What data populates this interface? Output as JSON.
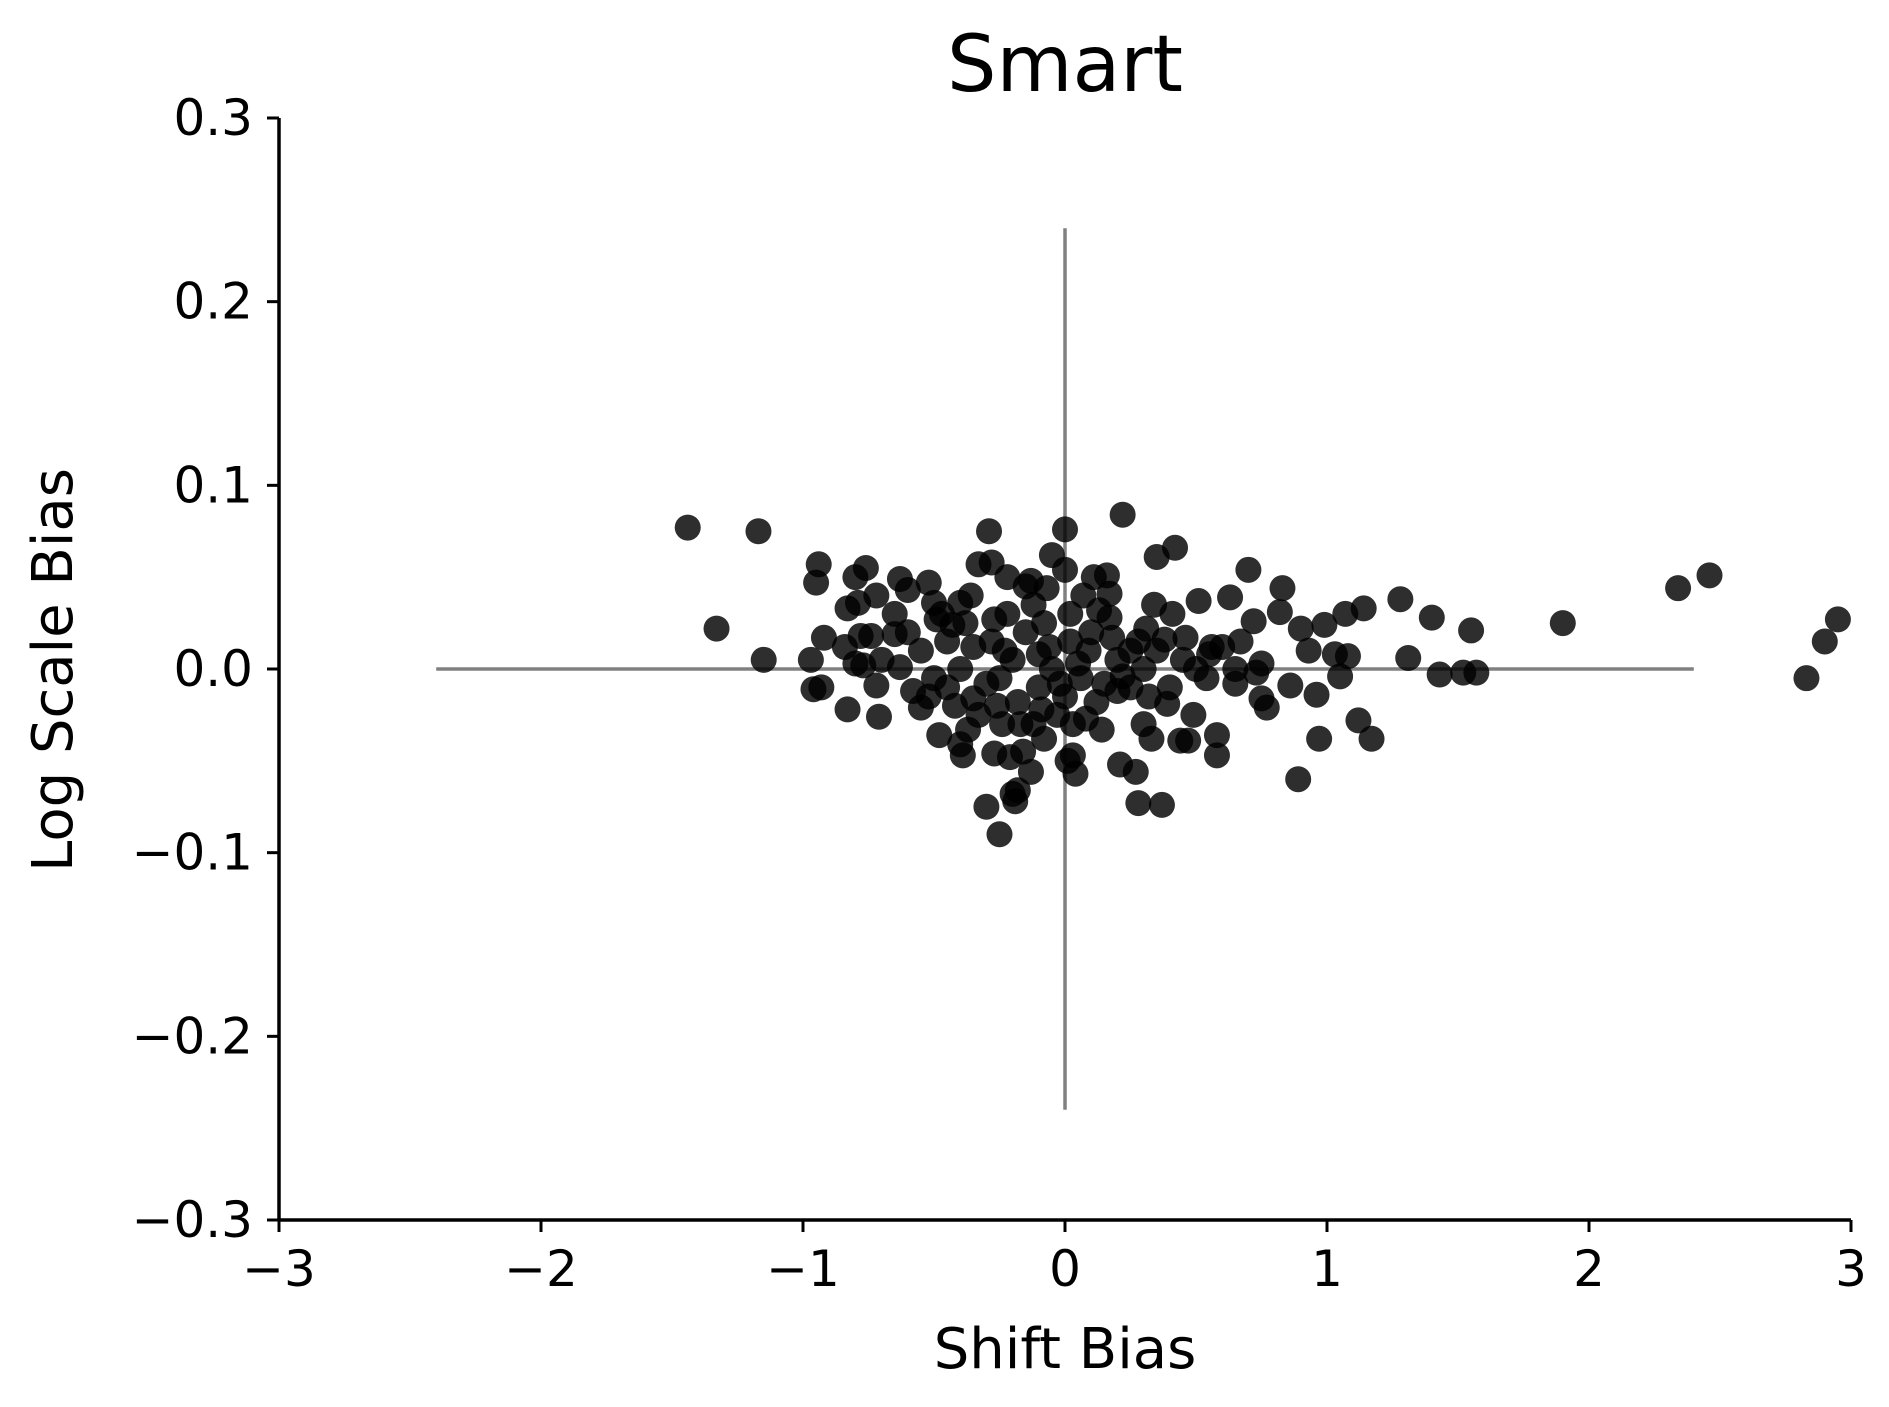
{
  "chart_data": {
    "type": "scatter",
    "title": "Smart",
    "xlabel": "Shift Bias",
    "ylabel": "Log Scale Bias",
    "xlim": [
      -3,
      3
    ],
    "ylim": [
      -0.3,
      0.3
    ],
    "xticks": [
      -3,
      -2,
      -1,
      0,
      1,
      2,
      3
    ],
    "xtick_labels": [
      "−3",
      "−2",
      "−1",
      "0",
      "1",
      "2",
      "3"
    ],
    "yticks": [
      0.3,
      0.2,
      0.1,
      0.0,
      -0.1,
      -0.2,
      -0.3
    ],
    "ytick_labels": [
      "0.3",
      "0.2",
      "0.1",
      "0.0",
      "−0.1",
      "−0.2",
      "−0.3"
    ],
    "grid": false,
    "legend": "none",
    "reference_lines": {
      "horizontal": {
        "y": 0,
        "x_from": -2.4,
        "x_to": 2.4,
        "color": "#808080"
      },
      "vertical": {
        "x": 0,
        "y_from": -0.24,
        "y_to": 0.24,
        "color": "#808080"
      }
    },
    "point_color": "#000000",
    "points": [
      [
        -1.44,
        0.077
      ],
      [
        -1.17,
        0.075
      ],
      [
        -1.33,
        0.022
      ],
      [
        -1.15,
        0.005
      ],
      [
        -0.94,
        0.057
      ],
      [
        -0.95,
        0.047
      ],
      [
        -0.97,
        0.005
      ],
      [
        -0.96,
        -0.011
      ],
      [
        -0.93,
        -0.01
      ],
      [
        -0.92,
        0.017
      ],
      [
        -0.83,
        -0.022
      ],
      [
        -0.84,
        0.012
      ],
      [
        -0.83,
        0.033
      ],
      [
        -0.8,
        0.05
      ],
      [
        -0.79,
        0.036
      ],
      [
        -0.76,
        0.055
      ],
      [
        -0.78,
        0.018
      ],
      [
        -0.8,
        0.003
      ],
      [
        -0.77,
        0.002
      ],
      [
        -0.74,
        0.018
      ],
      [
        -0.72,
        -0.009
      ],
      [
        -0.71,
        -0.026
      ],
      [
        -0.72,
        0.04
      ],
      [
        -0.63,
        0.049
      ],
      [
        -0.6,
        0.043
      ],
      [
        -0.65,
        0.019
      ],
      [
        -0.63,
        0.001
      ],
      [
        -0.55,
        -0.021
      ],
      [
        -0.52,
        0.047
      ],
      [
        -0.5,
        0.036
      ],
      [
        -0.49,
        0.027
      ],
      [
        -0.48,
        -0.036
      ],
      [
        -0.45,
        -0.01
      ],
      [
        -0.43,
        0.024
      ],
      [
        -0.4,
        0.036
      ],
      [
        -0.4,
        -0.041
      ],
      [
        -0.39,
        -0.047
      ],
      [
        -0.37,
        -0.033
      ],
      [
        -0.35,
        -0.016
      ],
      [
        -0.33,
        0.057
      ],
      [
        -0.3,
        -0.075
      ],
      [
        -0.29,
        0.075
      ],
      [
        -0.28,
        0.058
      ],
      [
        -0.27,
        -0.046
      ],
      [
        -0.25,
        -0.09
      ],
      [
        -0.24,
        -0.03
      ],
      [
        -0.22,
        0.05
      ],
      [
        -0.21,
        -0.048
      ],
      [
        -0.2,
        -0.068
      ],
      [
        -0.19,
        -0.072
      ],
      [
        -0.18,
        -0.066
      ],
      [
        -0.16,
        -0.045
      ],
      [
        -0.15,
        0.045
      ],
      [
        -0.13,
        -0.056
      ],
      [
        -0.12,
        -0.03
      ],
      [
        -0.1,
        0.008
      ],
      [
        -0.08,
        -0.038
      ],
      [
        -0.06,
        0.012
      ],
      [
        -0.05,
        0.062
      ],
      [
        -0.03,
        -0.025
      ],
      [
        0.0,
        0.076
      ],
      [
        0.0,
        0.054
      ],
      [
        0.01,
        -0.05
      ],
      [
        0.02,
        0.03
      ],
      [
        0.03,
        -0.047
      ],
      [
        0.04,
        -0.057
      ],
      [
        0.06,
        -0.005
      ],
      [
        0.08,
        -0.027
      ],
      [
        0.09,
        0.01
      ],
      [
        0.11,
        0.05
      ],
      [
        0.13,
        0.032
      ],
      [
        0.14,
        -0.033
      ],
      [
        0.16,
        0.051
      ],
      [
        0.17,
        0.041
      ],
      [
        0.18,
        0.017
      ],
      [
        0.2,
        -0.012
      ],
      [
        0.21,
        -0.052
      ],
      [
        0.22,
        0.084
      ],
      [
        0.25,
        0.01
      ],
      [
        0.27,
        -0.056
      ],
      [
        0.28,
        -0.073
      ],
      [
        0.3,
        -0.03
      ],
      [
        0.31,
        0.022
      ],
      [
        0.33,
        -0.038
      ],
      [
        0.34,
        0.035
      ],
      [
        0.35,
        0.061
      ],
      [
        0.37,
        -0.074
      ],
      [
        0.38,
        0.016
      ],
      [
        0.39,
        -0.019
      ],
      [
        0.41,
        0.03
      ],
      [
        0.42,
        0.066
      ],
      [
        0.44,
        -0.039
      ],
      [
        0.46,
        0.017
      ],
      [
        0.47,
        -0.039
      ],
      [
        0.49,
        -0.025
      ],
      [
        0.51,
        0.037
      ],
      [
        0.54,
        -0.005
      ],
      [
        0.56,
        0.012
      ],
      [
        0.58,
        -0.036
      ],
      [
        0.58,
        -0.047
      ],
      [
        0.6,
        0.012
      ],
      [
        0.63,
        0.039
      ],
      [
        0.65,
        -0.008
      ],
      [
        0.67,
        0.015
      ],
      [
        0.7,
        0.054
      ],
      [
        0.72,
        0.026
      ],
      [
        0.73,
        -0.002
      ],
      [
        0.75,
        -0.016
      ],
      [
        0.77,
        -0.021
      ],
      [
        0.82,
        0.031
      ],
      [
        0.83,
        0.044
      ],
      [
        0.86,
        -0.009
      ],
      [
        0.89,
        -0.06
      ],
      [
        0.9,
        0.022
      ],
      [
        0.93,
        0.01
      ],
      [
        0.96,
        -0.014
      ],
      [
        0.97,
        -0.038
      ],
      [
        0.99,
        0.024
      ],
      [
        1.03,
        0.008
      ],
      [
        1.05,
        -0.004
      ],
      [
        1.07,
        0.03
      ],
      [
        1.08,
        0.007
      ],
      [
        1.12,
        -0.028
      ],
      [
        1.14,
        0.033
      ],
      [
        1.17,
        -0.038
      ],
      [
        1.28,
        0.038
      ],
      [
        1.31,
        0.006
      ],
      [
        1.4,
        0.028
      ],
      [
        1.43,
        -0.003
      ],
      [
        1.52,
        -0.002
      ],
      [
        1.55,
        0.021
      ],
      [
        1.57,
        -0.002
      ],
      [
        1.9,
        0.025
      ],
      [
        2.34,
        0.044
      ],
      [
        2.46,
        0.051
      ],
      [
        2.83,
        -0.005
      ],
      [
        2.9,
        0.015
      ],
      [
        2.95,
        0.027
      ],
      [
        -0.27,
        0.027
      ],
      [
        -0.15,
        0.02
      ],
      [
        -0.35,
        0.012
      ],
      [
        -0.2,
        0.005
      ],
      [
        -0.05,
        0.0
      ],
      [
        -0.25,
        -0.005
      ],
      [
        -0.1,
        -0.01
      ],
      [
        -0.3,
        -0.008
      ],
      [
        0.05,
        0.003
      ],
      [
        -0.18,
        -0.018
      ],
      [
        -0.4,
        0.0
      ],
      [
        0.1,
        0.02
      ],
      [
        -0.22,
        0.03
      ],
      [
        0.0,
        -0.015
      ],
      [
        -0.12,
        0.035
      ],
      [
        0.15,
        -0.008
      ],
      [
        -0.33,
        -0.025
      ],
      [
        -0.45,
        0.015
      ],
      [
        0.2,
        0.005
      ],
      [
        -0.08,
        0.025
      ],
      [
        -0.17,
        -0.03
      ],
      [
        0.02,
        0.015
      ],
      [
        -0.38,
        0.025
      ],
      [
        -0.28,
        0.015
      ],
      [
        -0.02,
        -0.008
      ],
      [
        0.12,
        -0.018
      ],
      [
        -0.55,
        0.01
      ],
      [
        -0.6,
        0.02
      ],
      [
        -0.5,
        -0.005
      ],
      [
        0.25,
        -0.01
      ],
      [
        0.3,
        0.0
      ],
      [
        0.35,
        0.01
      ],
      [
        0.4,
        -0.01
      ],
      [
        0.45,
        0.005
      ],
      [
        -0.13,
        0.048
      ],
      [
        0.07,
        0.04
      ],
      [
        -0.42,
        -0.02
      ],
      [
        -0.47,
        0.03
      ],
      [
        0.17,
        0.028
      ],
      [
        -0.26,
        -0.02
      ],
      [
        0.5,
        0.0
      ],
      [
        0.55,
        0.008
      ],
      [
        0.65,
        0.0
      ],
      [
        0.75,
        0.003
      ],
      [
        -0.7,
        0.005
      ],
      [
        -0.58,
        -0.012
      ],
      [
        0.03,
        -0.03
      ],
      [
        -0.07,
        0.044
      ],
      [
        0.22,
        -0.004
      ],
      [
        -0.36,
        0.04
      ],
      [
        -0.23,
        0.01
      ],
      [
        -0.09,
        -0.022
      ],
      [
        0.28,
        0.015
      ],
      [
        0.32,
        -0.015
      ],
      [
        -0.52,
        -0.015
      ],
      [
        -0.65,
        0.03
      ]
    ]
  }
}
